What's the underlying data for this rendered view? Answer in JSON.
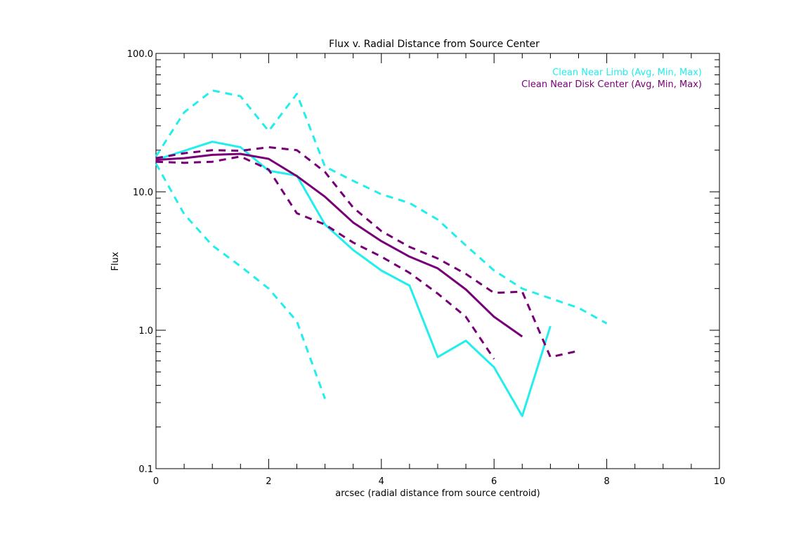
{
  "chart_data": {
    "type": "line",
    "title": "Flux v. Radial Distance from Source Center",
    "xlabel": "arcsec (radial distance from source centroid)",
    "ylabel": "Flux",
    "xlim": [
      0,
      10
    ],
    "ylim": [
      0.1,
      100
    ],
    "yscale": "log",
    "xticks": [
      0,
      2,
      4,
      6,
      8,
      10
    ],
    "xtick_labels": [
      "0",
      "2",
      "4",
      "6",
      "8",
      "10"
    ],
    "yticks": [
      0.1,
      1,
      10,
      100
    ],
    "ytick_labels": [
      "0.1",
      "1.0",
      "10.0",
      "100.0"
    ],
    "grid": false,
    "legend_position": "top-right",
    "legend": [
      {
        "label": "Clean Near Limb (Avg, Min, Max)",
        "color": "#22eeee"
      },
      {
        "label": "Clean Near Disk Center (Avg, Min, Max)",
        "color": "#770077"
      }
    ],
    "series": [
      {
        "name": "Near Limb Avg",
        "color": "#22eeee",
        "style": "solid",
        "x": [
          0,
          1,
          1.5,
          2,
          2.5,
          3,
          3.5,
          4,
          4.5,
          5,
          5.5,
          6,
          6.5,
          7
        ],
        "y": [
          17,
          23,
          21,
          14.2,
          13.1,
          5.8,
          3.8,
          2.7,
          2.1,
          0.64,
          0.84,
          0.54,
          0.24,
          1.07
        ]
      },
      {
        "name": "Near Limb Max",
        "color": "#22eeee",
        "style": "dashed",
        "x": [
          0,
          0.5,
          1,
          1.5,
          2,
          2.5,
          3,
          3.5,
          4,
          4.5,
          5,
          5.5,
          6,
          6.5,
          7,
          7.5,
          8
        ],
        "y": [
          18,
          37.5,
          54,
          49,
          27.5,
          51,
          15.2,
          12,
          9.6,
          8.3,
          6.3,
          4.1,
          2.7,
          2.0,
          1.7,
          1.45,
          1.12
        ]
      },
      {
        "name": "Near Limb Min",
        "color": "#22eeee",
        "style": "dashed",
        "x": [
          0,
          0.5,
          1,
          1.5,
          2,
          2.5,
          3
        ],
        "y": [
          16,
          6.9,
          4.1,
          2.9,
          2.0,
          1.16,
          0.32
        ]
      },
      {
        "name": "Near Disk Center Avg",
        "color": "#770077",
        "style": "solid",
        "x": [
          0,
          0.5,
          1,
          1.5,
          2,
          2.5,
          3,
          3.5,
          4,
          4.5,
          5,
          5.5,
          6,
          6.5
        ],
        "y": [
          17,
          17.5,
          18.5,
          18.8,
          17.3,
          13,
          9.2,
          6,
          4.4,
          3.4,
          2.8,
          1.97,
          1.25,
          0.9
        ]
      },
      {
        "name": "Near Disk Center Max",
        "color": "#770077",
        "style": "dashed",
        "x": [
          0,
          0.5,
          1,
          1.5,
          2,
          2.5,
          3,
          3.5,
          4,
          4.5,
          5,
          5.5,
          6,
          6.5,
          7,
          7.5
        ],
        "y": [
          17.5,
          19,
          20,
          19.8,
          21,
          20,
          13.9,
          7.7,
          5.2,
          4.0,
          3.3,
          2.55,
          1.86,
          1.9,
          0.64,
          0.71
        ]
      },
      {
        "name": "Near Disk Center Min",
        "color": "#770077",
        "style": "dashed",
        "x": [
          0,
          0.5,
          1,
          1.5,
          2,
          2.5,
          3,
          3.5,
          4,
          4.5,
          5,
          5.5,
          6
        ],
        "y": [
          16.5,
          16.2,
          16.5,
          18,
          14.5,
          7.0,
          5.8,
          4.3,
          3.4,
          2.6,
          1.84,
          1.25,
          0.62
        ]
      }
    ]
  }
}
